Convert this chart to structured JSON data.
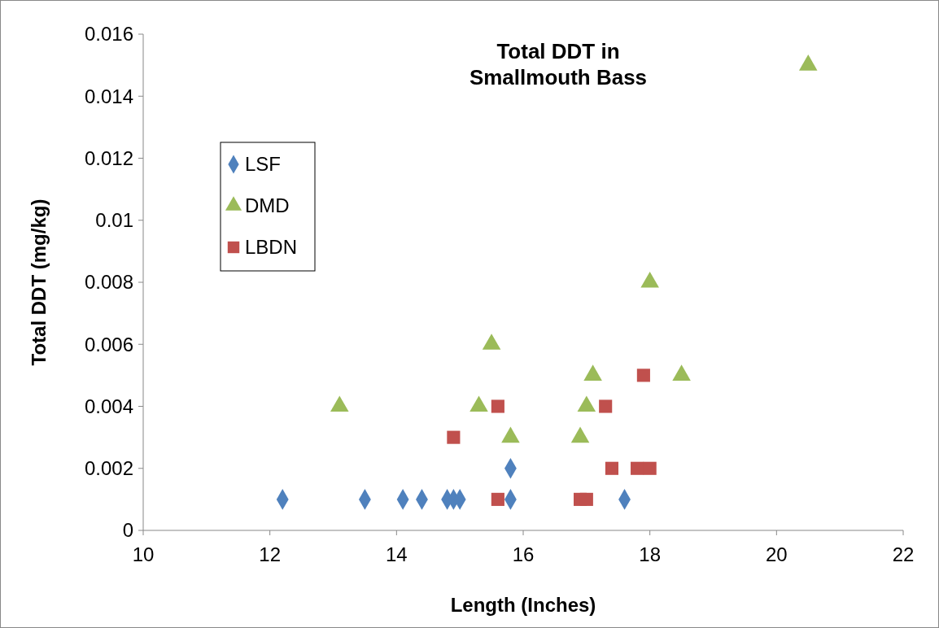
{
  "chart_data": {
    "type": "scatter",
    "title": "Total DDT in\nSmallmouth Bass",
    "xlabel": "Length (Inches)",
    "ylabel": "Total DDT (mg/kg)",
    "xlim": [
      10,
      22
    ],
    "xticks": [
      10,
      12,
      14,
      16,
      18,
      20,
      22
    ],
    "ylim": [
      0,
      0.016
    ],
    "yticks": [
      {
        "value": 0,
        "label": "0"
      },
      {
        "value": 0.002,
        "label": "0.002"
      },
      {
        "value": 0.004,
        "label": "0.004"
      },
      {
        "value": 0.006,
        "label": "0.006"
      },
      {
        "value": 0.008,
        "label": "0.008"
      },
      {
        "value": 0.01,
        "label": "0.01"
      },
      {
        "value": 0.012,
        "label": "0.012"
      },
      {
        "value": 0.014,
        "label": "0.014"
      },
      {
        "value": 0.016,
        "label": "0.016"
      }
    ],
    "grid": false,
    "legend": "left",
    "series": [
      {
        "name": "LSF",
        "color": "#4f81bd",
        "marker": "diamond",
        "x": [
          12.2,
          13.5,
          14.1,
          14.4,
          14.8,
          14.9,
          15.0,
          15.8,
          15.8,
          17.6
        ],
        "values": [
          0.001,
          0.001,
          0.001,
          0.001,
          0.001,
          0.001,
          0.001,
          0.002,
          0.001,
          0.001
        ]
      },
      {
        "name": "DMD",
        "color": "#9bbb59",
        "marker": "triangle",
        "x": [
          13.1,
          15.3,
          15.5,
          15.8,
          16.9,
          17.0,
          17.1,
          18.0,
          18.5,
          20.5
        ],
        "values": [
          0.004,
          0.004,
          0.006,
          0.003,
          0.003,
          0.004,
          0.005,
          0.008,
          0.005,
          0.015
        ]
      },
      {
        "name": "LBDN",
        "color": "#c0504d",
        "marker": "square",
        "x": [
          14.9,
          15.6,
          15.6,
          16.9,
          17.0,
          17.3,
          17.4,
          17.8,
          17.9,
          18.0
        ],
        "values": [
          0.003,
          0.004,
          0.001,
          0.001,
          0.001,
          0.004,
          0.002,
          0.002,
          0.005,
          0.002
        ]
      }
    ]
  }
}
